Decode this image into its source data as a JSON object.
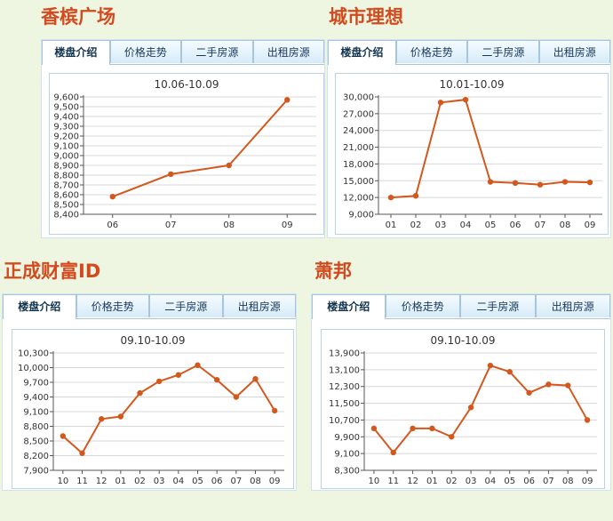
{
  "panels": [
    {
      "name": "香槟广场",
      "tabs": [
        "楼盘介绍",
        "价格走势",
        "二手房源",
        "出租房源"
      ],
      "chart_data": {
        "type": "line",
        "title": "10.06-10.09",
        "categories": [
          "06",
          "07",
          "08",
          "09"
        ],
        "values": [
          8580,
          8810,
          8900,
          9570
        ],
        "ylim": [
          8400,
          9600
        ],
        "yticks": [
          "8,400",
          "8,500",
          "8,600",
          "8,700",
          "8,800",
          "8,900",
          "9,000",
          "9,100",
          "9,200",
          "9,300",
          "9,400",
          "9,500",
          "9,600"
        ],
        "ytick_values": [
          8400,
          8500,
          8600,
          8700,
          8800,
          8900,
          9000,
          9100,
          9200,
          9300,
          9400,
          9500,
          9600
        ],
        "grid": true,
        "color": "#d2581e"
      }
    },
    {
      "name": "城市理想",
      "tabs": [
        "楼盘介绍",
        "价格走势",
        "二手房源",
        "出租房源"
      ],
      "chart_data": {
        "type": "line",
        "title": "10.01-10.09",
        "categories": [
          "01",
          "02",
          "03",
          "04",
          "05",
          "06",
          "07",
          "08",
          "09"
        ],
        "values": [
          12000,
          12300,
          29000,
          29500,
          14800,
          14600,
          14300,
          14800,
          14700
        ],
        "ylim": [
          9000,
          30000
        ],
        "yticks": [
          "9,000",
          "12,000",
          "15,000",
          "18,000",
          "21,000",
          "24,000",
          "27,000",
          "30,000"
        ],
        "ytick_values": [
          9000,
          12000,
          15000,
          18000,
          21000,
          24000,
          27000,
          30000
        ],
        "grid": true,
        "color": "#d2581e"
      }
    },
    {
      "name": "正成财富ID",
      "tabs": [
        "楼盘介绍",
        "价格走势",
        "二手房源",
        "出租房源"
      ],
      "chart_data": {
        "type": "line",
        "title": "09.10-10.09",
        "categories": [
          "10",
          "11",
          "12",
          "01",
          "02",
          "03",
          "04",
          "05",
          "06",
          "07",
          "08",
          "09"
        ],
        "values": [
          8600,
          8250,
          8950,
          9000,
          9480,
          9720,
          9850,
          10050,
          9750,
          9400,
          9770,
          9120
        ],
        "ylim": [
          7900,
          10300
        ],
        "yticks": [
          "7,900",
          "8,200",
          "8,500",
          "8,800",
          "9,100",
          "9,400",
          "9,700",
          "10,000",
          "10,300"
        ],
        "ytick_values": [
          7900,
          8200,
          8500,
          8800,
          9100,
          9400,
          9700,
          10000,
          10300
        ],
        "grid": true,
        "color": "#d2581e"
      }
    },
    {
      "name": "萧邦",
      "tabs": [
        "楼盘介绍",
        "价格走势",
        "二手房源",
        "出租房源"
      ],
      "chart_data": {
        "type": "line",
        "title": "09.10-10.09",
        "categories": [
          "10",
          "11",
          "12",
          "01",
          "02",
          "03",
          "04",
          "05",
          "06",
          "07",
          "08",
          "09"
        ],
        "values": [
          10300,
          9150,
          10300,
          10300,
          9900,
          11300,
          13300,
          13000,
          12000,
          12400,
          12350,
          10700
        ],
        "ylim": [
          8300,
          13900
        ],
        "yticks": [
          "8,300",
          "9,100",
          "9,900",
          "10,700",
          "11,500",
          "12,300",
          "13,100",
          "13,900"
        ],
        "ytick_values": [
          8300,
          9100,
          9900,
          10700,
          11500,
          12300,
          13100,
          13900
        ],
        "grid": true,
        "color": "#d2581e"
      }
    }
  ]
}
